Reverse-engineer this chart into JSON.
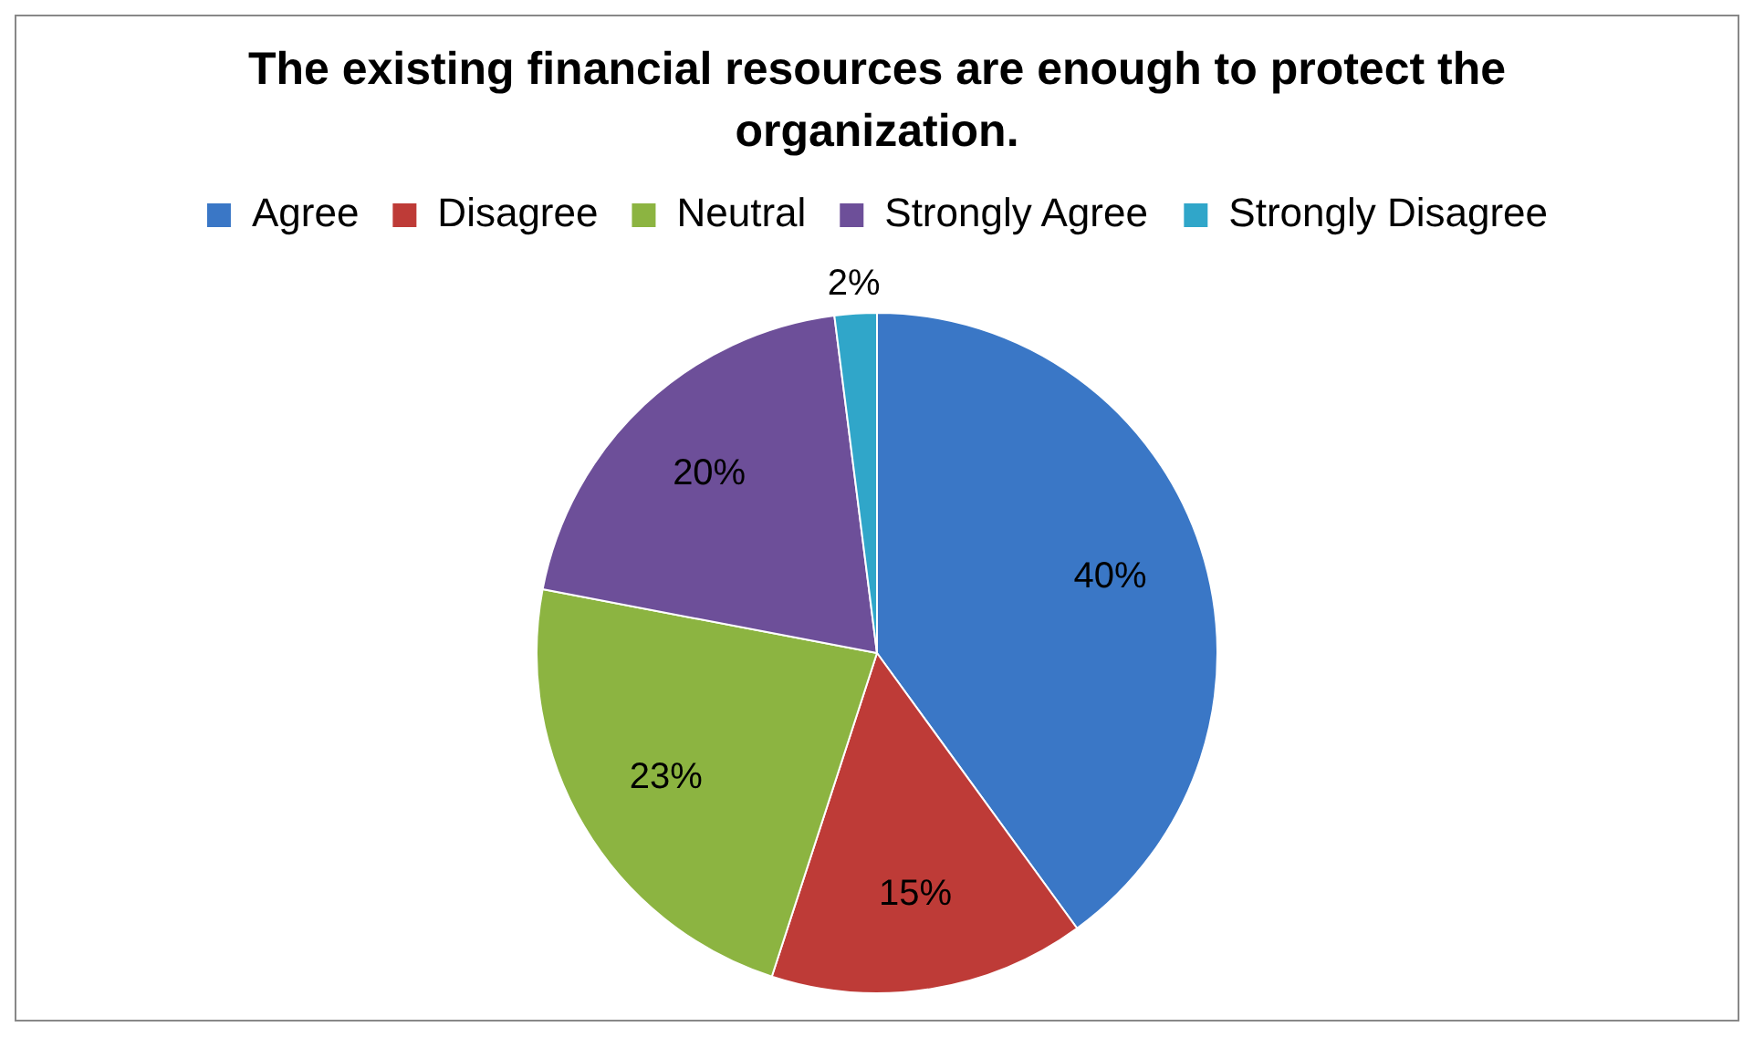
{
  "chart_data": {
    "type": "pie",
    "title": "The existing financial resources are enough to protect the organization.",
    "categories": [
      "Agree",
      "Disagree",
      "Neutral",
      "Strongly Agree",
      "Strongly Disagree"
    ],
    "values": [
      40,
      15,
      23,
      20,
      2
    ],
    "colors": [
      "#3a77c6",
      "#be3b37",
      "#8cb441",
      "#6d4f99",
      "#30a6c9"
    ],
    "value_labels": [
      "40%",
      "15%",
      "23%",
      "20%",
      "2%"
    ],
    "legend": "top"
  }
}
